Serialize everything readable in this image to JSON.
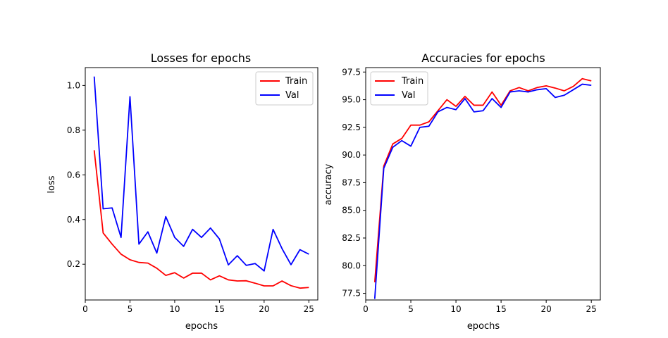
{
  "chart_data": [
    {
      "type": "line",
      "title": "Losses for epochs",
      "xlabel": "epochs",
      "ylabel": "loss",
      "xlim": [
        0,
        26
      ],
      "ylim": [
        0.04,
        1.08
      ],
      "xticks": [
        0,
        5,
        10,
        15,
        20,
        25
      ],
      "yticks": [
        0.2,
        0.4,
        0.6,
        0.8,
        1.0
      ],
      "ytick_labels": [
        "0.2",
        "0.4",
        "0.6",
        "0.8",
        "1.0"
      ],
      "legend": "top-right",
      "grid": false,
      "x": [
        1,
        2,
        3,
        4,
        5,
        6,
        7,
        8,
        9,
        10,
        11,
        12,
        13,
        14,
        15,
        16,
        17,
        18,
        19,
        20,
        21,
        22,
        23,
        24,
        25
      ],
      "series": [
        {
          "name": "Train",
          "color": "#ff0000",
          "values": [
            0.71,
            0.34,
            0.29,
            0.245,
            0.22,
            0.208,
            0.205,
            0.182,
            0.15,
            0.162,
            0.138,
            0.16,
            0.16,
            0.13,
            0.148,
            0.13,
            0.125,
            0.126,
            0.115,
            0.103,
            0.103,
            0.125,
            0.104,
            0.093,
            0.096
          ]
        },
        {
          "name": "Val",
          "color": "#0000ff",
          "values": [
            1.04,
            0.448,
            0.452,
            0.32,
            0.95,
            0.29,
            0.345,
            0.25,
            0.413,
            0.32,
            0.28,
            0.356,
            0.32,
            0.362,
            0.313,
            0.197,
            0.238,
            0.195,
            0.203,
            0.17,
            0.356,
            0.27,
            0.198,
            0.265,
            0.245
          ]
        }
      ]
    },
    {
      "type": "line",
      "title": "Accuracies for epochs",
      "xlabel": "epochs",
      "ylabel": "accuracy",
      "xlim": [
        0,
        26
      ],
      "ylim": [
        76.9,
        97.9
      ],
      "xticks": [
        0,
        5,
        10,
        15,
        20,
        25
      ],
      "yticks": [
        77.5,
        80.0,
        82.5,
        85.0,
        87.5,
        90.0,
        92.5,
        95.0,
        97.5
      ],
      "ytick_labels": [
        "77.5",
        "80.0",
        "82.5",
        "85.0",
        "87.5",
        "90.0",
        "92.5",
        "95.0",
        "97.5"
      ],
      "legend": "top-left",
      "grid": false,
      "x": [
        1,
        2,
        3,
        4,
        5,
        6,
        7,
        8,
        9,
        10,
        11,
        12,
        13,
        14,
        15,
        16,
        17,
        18,
        19,
        20,
        21,
        22,
        23,
        24,
        25
      ],
      "series": [
        {
          "name": "Train",
          "color": "#ff0000",
          "values": [
            78.5,
            89.0,
            91.0,
            91.5,
            92.7,
            92.7,
            93.0,
            94.0,
            95.0,
            94.4,
            95.3,
            94.5,
            94.5,
            95.7,
            94.5,
            95.8,
            96.1,
            95.8,
            96.1,
            96.25,
            96.05,
            95.8,
            96.2,
            96.9,
            96.7
          ]
        },
        {
          "name": "Val",
          "color": "#0000ff",
          "values": [
            77.0,
            88.8,
            90.7,
            91.3,
            90.8,
            92.5,
            92.6,
            93.9,
            94.3,
            94.1,
            95.1,
            93.9,
            94.0,
            95.1,
            94.3,
            95.7,
            95.8,
            95.7,
            95.9,
            96.0,
            95.2,
            95.4,
            95.9,
            96.4,
            96.3
          ]
        }
      ]
    }
  ]
}
